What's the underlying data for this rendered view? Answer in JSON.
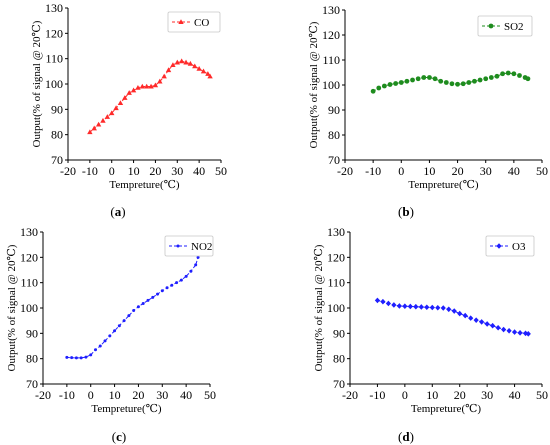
{
  "chart_data": [
    {
      "type": "line",
      "caption": "(a)",
      "xlabel": "Tempreture(℃)",
      "ylabel": "Output(% of signal @ 20℃)",
      "xlim": [
        -20,
        50
      ],
      "ylim": [
        70,
        130
      ],
      "xticks": [
        -20,
        -10,
        0,
        10,
        20,
        30,
        40,
        50
      ],
      "yticks": [
        70,
        80,
        90,
        100,
        110,
        120,
        130
      ],
      "grid": false,
      "legend_position": "top-right",
      "series": [
        {
          "name": "CO",
          "color": "#ff2a2a",
          "marker": "triangle",
          "x": [
            -10,
            -8,
            -6,
            -4,
            -2,
            0,
            2,
            4,
            6,
            8,
            10,
            12,
            14,
            16,
            18,
            20,
            22,
            24,
            26,
            28,
            30,
            32,
            34,
            36,
            38,
            40,
            42,
            44,
            45
          ],
          "y": [
            81,
            82.5,
            84,
            85.5,
            87,
            88.5,
            90.5,
            92.5,
            94.5,
            96.5,
            97.5,
            98.5,
            99,
            99,
            99,
            99.5,
            101,
            103,
            105.5,
            107.5,
            108.5,
            109,
            108.5,
            108,
            107,
            106,
            105,
            104,
            103
          ]
        }
      ]
    },
    {
      "type": "line",
      "caption": "(b)",
      "xlabel": "Tempreture(℃)",
      "ylabel": "Output(% of signal @ 20℃)",
      "xlim": [
        -20,
        50
      ],
      "ylim": [
        70,
        130
      ],
      "xticks": [
        -20,
        -10,
        0,
        10,
        20,
        30,
        40,
        50
      ],
      "yticks": [
        70,
        80,
        90,
        100,
        110,
        120,
        130
      ],
      "grid": false,
      "legend_position": "top-right",
      "series": [
        {
          "name": "SO2",
          "color": "#1e8c1e",
          "marker": "circle",
          "x": [
            -10,
            -8,
            -6,
            -4,
            -2,
            0,
            2,
            4,
            6,
            8,
            10,
            12,
            14,
            16,
            18,
            20,
            22,
            24,
            26,
            28,
            30,
            32,
            34,
            36,
            38,
            40,
            42,
            44,
            45
          ],
          "y": [
            97.5,
            98.8,
            99.6,
            100.2,
            100.6,
            101,
            101.5,
            102,
            102.5,
            103,
            103,
            102.5,
            101.5,
            101,
            100.5,
            100.3,
            100.5,
            101,
            101.5,
            102,
            102.5,
            103,
            103.5,
            104.5,
            104.8,
            104.5,
            103.8,
            103,
            102.5
          ]
        }
      ]
    },
    {
      "type": "line",
      "caption": "(c)",
      "xlabel": "Tempreture(℃)",
      "ylabel": "Output(% of signal @ 20℃)",
      "xlim": [
        -20,
        50
      ],
      "ylim": [
        70,
        130
      ],
      "xticks": [
        -20,
        -10,
        0,
        10,
        20,
        30,
        40,
        50
      ],
      "yticks": [
        70,
        80,
        90,
        100,
        110,
        120,
        130
      ],
      "grid": false,
      "legend_position": "top-right",
      "series": [
        {
          "name": "NO2",
          "color": "#1f1fff",
          "marker": "dot",
          "x": [
            -10,
            -8,
            -6,
            -4,
            -2,
            0,
            2,
            4,
            6,
            8,
            10,
            12,
            14,
            16,
            18,
            20,
            22,
            24,
            26,
            28,
            30,
            32,
            34,
            36,
            38,
            40,
            42,
            44,
            45
          ],
          "y": [
            80.5,
            80.4,
            80.3,
            80.3,
            80.6,
            81.5,
            83.5,
            85,
            87,
            89,
            91,
            93,
            95,
            97,
            99,
            100.5,
            101.8,
            103,
            104.2,
            105.5,
            106.8,
            108,
            109,
            110,
            111,
            112.5,
            114.5,
            117,
            120
          ]
        }
      ]
    },
    {
      "type": "line",
      "caption": "(d)",
      "xlabel": "Tempreture(℃)",
      "ylabel": "Output(% of signal @ 20℃)",
      "xlim": [
        -20,
        50
      ],
      "ylim": [
        70,
        130
      ],
      "xticks": [
        -20,
        -10,
        0,
        10,
        20,
        30,
        40,
        50
      ],
      "yticks": [
        70,
        80,
        90,
        100,
        110,
        120,
        130
      ],
      "grid": false,
      "legend_position": "top-right",
      "series": [
        {
          "name": "O3",
          "color": "#1f1fff",
          "marker": "diamond",
          "x": [
            -10,
            -8,
            -6,
            -4,
            -2,
            0,
            2,
            4,
            6,
            8,
            10,
            12,
            14,
            16,
            18,
            20,
            22,
            24,
            26,
            28,
            30,
            32,
            34,
            36,
            38,
            40,
            42,
            44,
            45
          ],
          "y": [
            103,
            102.5,
            101.8,
            101.2,
            100.8,
            100.7,
            100.6,
            100.5,
            100.4,
            100.3,
            100.2,
            100.1,
            100,
            99.5,
            98.8,
            97.8,
            97,
            96,
            95.2,
            94.5,
            93.7,
            93,
            92.2,
            91.5,
            91,
            90.5,
            90.2,
            90,
            89.8
          ]
        }
      ]
    }
  ]
}
